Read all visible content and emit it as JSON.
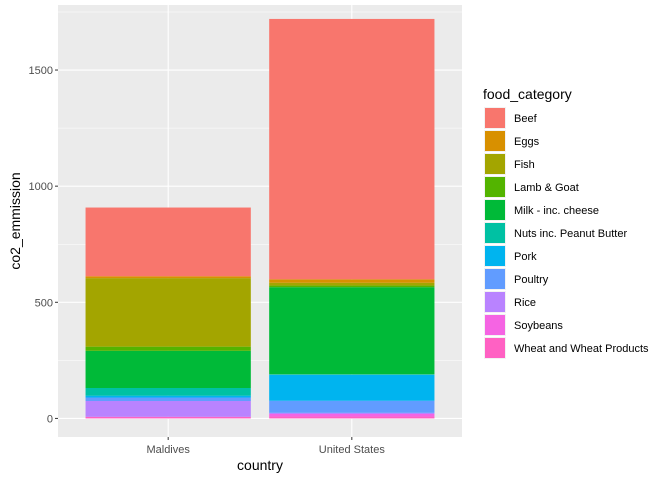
{
  "chart_data": {
    "type": "bar",
    "stacked": true,
    "xlabel": "country",
    "ylabel": "co2_emmission",
    "categories": [
      "Maldives",
      "United States"
    ],
    "ylim": [
      -80,
      1780
    ],
    "yticks": [
      0,
      500,
      1000,
      1500
    ],
    "grid": true,
    "legend_title": "food_category",
    "legend_position": "right",
    "series": [
      {
        "name": "Wheat and Wheat Products",
        "color": "#FF61C3",
        "values": [
          7,
          8
        ]
      },
      {
        "name": "Soybeans",
        "color": "#F564E3",
        "values": [
          0,
          11
        ]
      },
      {
        "name": "Rice",
        "color": "#B983FF",
        "values": [
          68,
          5
        ]
      },
      {
        "name": "Poultry",
        "color": "#619CFF",
        "values": [
          15,
          52
        ]
      },
      {
        "name": "Pork",
        "color": "#00B4EF",
        "values": [
          8,
          112
        ]
      },
      {
        "name": "Nuts inc. Peanut Butter",
        "color": "#00C1A3",
        "values": [
          33,
          2
        ]
      },
      {
        "name": "Milk - inc. cheese",
        "color": "#00BA38",
        "values": [
          160,
          375
        ]
      },
      {
        "name": "Lamb & Goat",
        "color": "#53B400",
        "values": [
          18,
          7
        ]
      },
      {
        "name": "Fish",
        "color": "#A3A500",
        "values": [
          295,
          12
        ]
      },
      {
        "name": "Eggs",
        "color": "#D89000",
        "values": [
          8,
          15
        ]
      },
      {
        "name": "Beef",
        "color": "#F8766D",
        "values": [
          296,
          1121
        ]
      }
    ]
  }
}
